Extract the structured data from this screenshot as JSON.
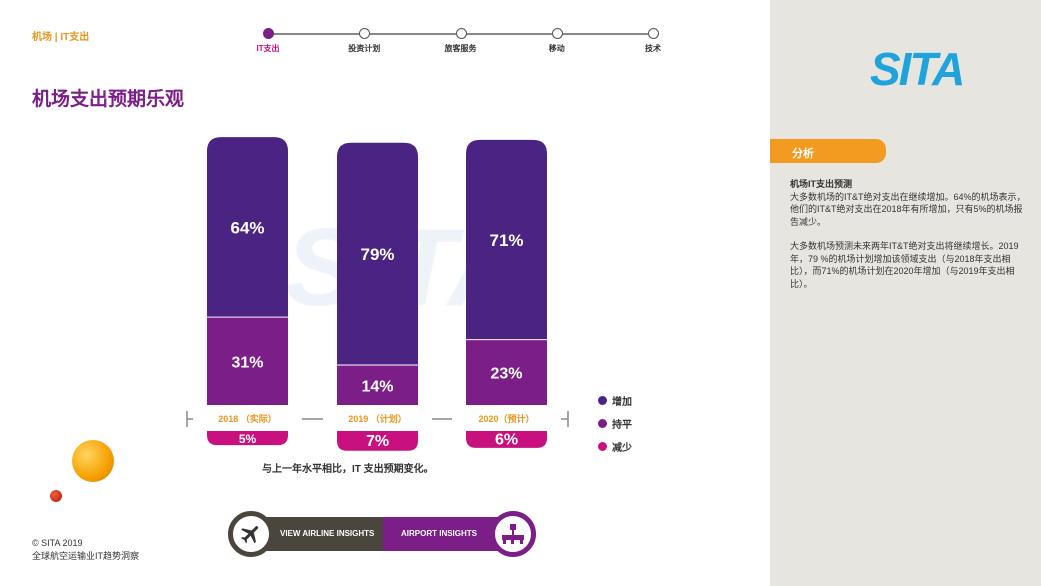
{
  "breadcrumb": "机场 | IT支出",
  "steps": [
    "IT支出",
    "投资计划",
    "旅客服务",
    "移动",
    "技术"
  ],
  "title": "机场支出预期乐观",
  "watermark": "SITA",
  "chart_data": {
    "type": "bar",
    "categories": [
      "2018 （实际）",
      "2019 （计划）",
      "2020（预计）"
    ],
    "series": [
      {
        "name": "增加",
        "values": [
          64,
          79,
          71
        ],
        "color": "#4b2383"
      },
      {
        "name": "持平",
        "values": [
          31,
          14,
          23
        ],
        "color": "#7b1e87"
      },
      {
        "name": "减少",
        "values": [
          5,
          7,
          6
        ],
        "color": "#c8107e"
      }
    ],
    "caption": "与上一年水平相比，IT 支出预期变化。",
    "legend_position": "right"
  },
  "copyright": "© SITA 2019",
  "subtitle": "全球航空运输业IT趋势洞察",
  "nav": {
    "airline": "VIEW AIRLINE INSIGHTS",
    "airport": "AIRPORT INSIGHTS"
  },
  "sidebar": {
    "logo": "SITA",
    "tab": "分析",
    "heading": "机场IT支出预测",
    "p1": "大多数机场的IT&T绝对支出在继续增加。64%的机场表示，他们的IT&T绝对支出在2018年有所增加，只有5%的机场报告减少。",
    "p2": "大多数机场预测未来两年IT&T绝对支出将继续增长。2019年，79 %的机场计划增加该领域支出（与2018年支出相比），而71%的机场计划在2020年增加（与2019年支出相比）。"
  }
}
